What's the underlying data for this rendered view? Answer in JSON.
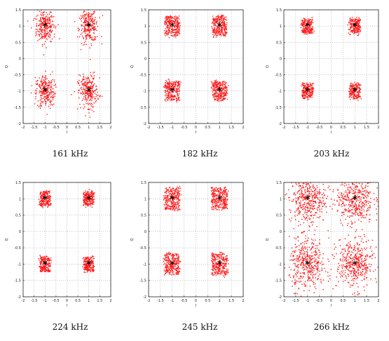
{
  "figure": {
    "point_color": "#ff1a1a",
    "marker_color": "#000000",
    "marker_glyph": "*",
    "grid": true
  },
  "chart_data": [
    {
      "type": "scatter",
      "caption": "161 kHz",
      "xlabel": "I",
      "ylabel": "Q",
      "xlim": [
        -2,
        2
      ],
      "ylim": [
        -2,
        1.5
      ],
      "xticks": [
        "-2",
        "-1.5",
        "-1",
        "-0.5",
        "0",
        "0.5",
        "1",
        "1.5",
        "2"
      ],
      "yticks": [
        "1.5",
        "1",
        "0.5",
        "0",
        "-0.5",
        "-1",
        "-1.5",
        "-2"
      ],
      "ideal_points": [
        [
          -1,
          1
        ],
        [
          1,
          1
        ],
        [
          -1,
          -1
        ],
        [
          1,
          -1
        ]
      ],
      "cluster_spread": [
        0.22,
        0.26
      ]
    },
    {
      "type": "scatter",
      "caption": "182 kHz",
      "xlabel": "I",
      "ylabel": "Q",
      "xlim": [
        -2,
        2
      ],
      "ylim": [
        -2,
        1.5
      ],
      "xticks": [
        "-2",
        "-1.5",
        "-1",
        "-0.5",
        "0",
        "0.5",
        "1",
        "1.5",
        "2"
      ],
      "yticks": [
        "1.5",
        "1",
        "0.5",
        "0",
        "-0.5",
        "-1",
        "-1.5",
        "-2"
      ],
      "ideal_points": [
        [
          -1,
          1
        ],
        [
          1,
          1
        ],
        [
          -1,
          -1
        ],
        [
          1,
          -1
        ]
      ],
      "cluster_spread": [
        0.23,
        0.23
      ]
    },
    {
      "type": "scatter",
      "caption": "203 kHz",
      "xlabel": "I",
      "ylabel": "Q",
      "xlim": [
        -2,
        2
      ],
      "ylim": [
        -2,
        1.5
      ],
      "xticks": [
        "-2",
        "-1.5",
        "-1",
        "-0.5",
        "0",
        "0.5",
        "1",
        "1.5",
        "2"
      ],
      "yticks": [
        "1.5",
        "1",
        "0.5",
        "0",
        "-0.5",
        "-1",
        "-1.5",
        "-2"
      ],
      "ideal_points": [
        [
          -1,
          1
        ],
        [
          1,
          1
        ],
        [
          -1,
          -1
        ],
        [
          1,
          -1
        ]
      ],
      "cluster_spread": [
        0.17,
        0.17
      ]
    },
    {
      "type": "scatter",
      "caption": "224 kHz",
      "xlabel": "I",
      "ylabel": "Q",
      "xlim": [
        -2,
        2
      ],
      "ylim": [
        -2,
        1.5
      ],
      "xticks": [
        "-2",
        "-1.5",
        "-1",
        "-0.5",
        "0",
        "0.5",
        "1",
        "1.5",
        "2"
      ],
      "yticks": [
        "1.5",
        "1",
        "0.5",
        "0",
        "-0.5",
        "-1",
        "-1.5",
        "-2"
      ],
      "ideal_points": [
        [
          -1,
          1
        ],
        [
          1,
          1
        ],
        [
          -1,
          -1
        ],
        [
          1,
          -1
        ]
      ],
      "cluster_spread": [
        0.18,
        0.17
      ]
    },
    {
      "type": "scatter",
      "caption": "245 kHz",
      "xlabel": "I",
      "ylabel": "Q",
      "xlim": [
        -2,
        2
      ],
      "ylim": [
        -2,
        1.5
      ],
      "xticks": [
        "-2",
        "-1.5",
        "-1",
        "-0.5",
        "0",
        "0.5",
        "1",
        "1.5",
        "2"
      ],
      "yticks": [
        "1.5",
        "1",
        "0.5",
        "0",
        "-0.5",
        "-1",
        "-1.5",
        "-2"
      ],
      "ideal_points": [
        [
          -1,
          1
        ],
        [
          1,
          1
        ],
        [
          -1,
          -1
        ],
        [
          1,
          -1
        ]
      ],
      "cluster_spread": [
        0.25,
        0.25
      ]
    },
    {
      "type": "scatter",
      "caption": "266 kHz",
      "xlabel": "I",
      "ylabel": "Q",
      "xlim": [
        -2,
        2
      ],
      "ylim": [
        -2,
        1.5
      ],
      "xticks": [
        "-2",
        "-1.5",
        "-1",
        "-0.5",
        "0",
        "0.5",
        "1",
        "1.5",
        "2"
      ],
      "yticks": [
        "1.5",
        "1",
        "0.5",
        "0",
        "-0.5",
        "-1",
        "-1.5",
        "-2"
      ],
      "ideal_points": [
        [
          -1,
          1
        ],
        [
          1,
          1
        ],
        [
          -1,
          -1
        ],
        [
          1,
          -1
        ]
      ],
      "cluster_spread": [
        0.45,
        0.45
      ]
    }
  ]
}
